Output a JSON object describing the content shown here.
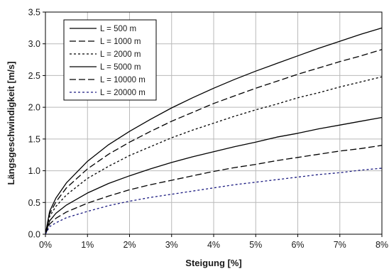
{
  "chart_data": {
    "type": "line",
    "xlabel": "Steigung [%]",
    "ylabel": "Längsgeschwindigkeit [m/s]",
    "xlim": [
      0,
      8
    ],
    "ylim": [
      0,
      3.5
    ],
    "x_ticks": [
      0,
      1,
      2,
      3,
      4,
      5,
      6,
      7,
      8
    ],
    "x_tick_labels": [
      "0%",
      "1%",
      "2%",
      "3%",
      "4%",
      "5%",
      "6%",
      "7%",
      "8%"
    ],
    "y_ticks": [
      0,
      0.5,
      1,
      1.5,
      2,
      2.5,
      3,
      3.5
    ],
    "y_tick_labels": [
      "0.0",
      "0.5",
      "1.0",
      "1.5",
      "2.0",
      "2.5",
      "3.0",
      "3.5"
    ],
    "grid": true,
    "legend_position": "top-left",
    "x": [
      0,
      0.1,
      0.25,
      0.5,
      1,
      1.5,
      2,
      2.5,
      3,
      3.5,
      4,
      4.5,
      5,
      5.5,
      6,
      6.5,
      7,
      7.5,
      8
    ],
    "series": [
      {
        "name": "L = 500 m",
        "dash": "solid",
        "color": "#000000",
        "values": [
          0,
          0.36,
          0.57,
          0.81,
          1.15,
          1.41,
          1.62,
          1.81,
          1.99,
          2.15,
          2.3,
          2.44,
          2.57,
          2.69,
          2.81,
          2.93,
          3.04,
          3.15,
          3.25
        ]
      },
      {
        "name": "L = 1000 m",
        "dash": "long-dash",
        "color": "#000000",
        "values": [
          0,
          0.32,
          0.51,
          0.73,
          1.03,
          1.26,
          1.45,
          1.62,
          1.78,
          1.92,
          2.06,
          2.18,
          2.3,
          2.41,
          2.52,
          2.62,
          2.72,
          2.81,
          2.91
        ]
      },
      {
        "name": "L = 2000 m",
        "dash": "short-dash",
        "color": "#000000",
        "values": [
          0,
          0.28,
          0.44,
          0.62,
          0.88,
          1.07,
          1.24,
          1.38,
          1.52,
          1.64,
          1.75,
          1.86,
          1.96,
          2.05,
          2.15,
          2.23,
          2.32,
          2.4,
          2.48
        ]
      },
      {
        "name": "L = 5000 m",
        "dash": "solid",
        "color": "#000000",
        "values": [
          0,
          0.21,
          0.33,
          0.46,
          0.65,
          0.8,
          0.92,
          1.03,
          1.13,
          1.22,
          1.3,
          1.38,
          1.45,
          1.53,
          1.59,
          1.66,
          1.72,
          1.78,
          1.84
        ]
      },
      {
        "name": "L = 10000 m",
        "dash": "long-dash",
        "color": "#000000",
        "values": [
          0,
          0.16,
          0.25,
          0.35,
          0.49,
          0.6,
          0.7,
          0.78,
          0.85,
          0.92,
          0.99,
          1.05,
          1.1,
          1.16,
          1.21,
          1.26,
          1.31,
          1.35,
          1.4
        ]
      },
      {
        "name": "L = 20000 m",
        "dash": "short-dash",
        "color": "#1a1a80",
        "values": [
          0,
          0.12,
          0.18,
          0.26,
          0.36,
          0.45,
          0.52,
          0.58,
          0.63,
          0.68,
          0.73,
          0.78,
          0.82,
          0.86,
          0.9,
          0.94,
          0.97,
          1.01,
          1.04
        ]
      }
    ]
  }
}
